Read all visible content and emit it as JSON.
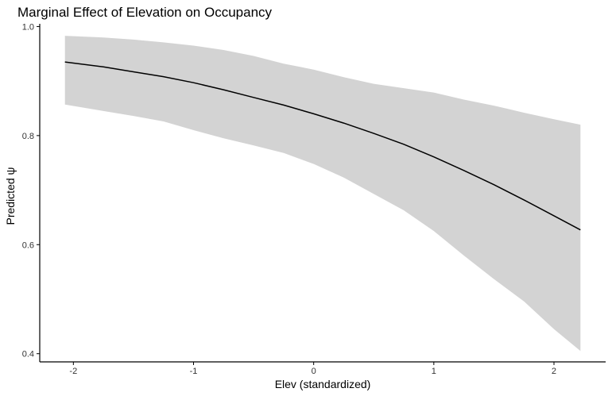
{
  "chart_data": {
    "type": "line",
    "title": "Marginal Effect of Elevation on Occupancy",
    "xlabel": "Elev (standardized)",
    "ylabel": "Predicted ψ",
    "xlim": [
      -2.28,
      2.43
    ],
    "ylim": [
      0.385,
      1.005
    ],
    "x_ticks": [
      -2,
      -1,
      0,
      1,
      2
    ],
    "x_tick_labels": [
      "-2",
      "-1",
      "0",
      "1",
      "2"
    ],
    "y_ticks": [
      0.4,
      0.6,
      0.8,
      1.0
    ],
    "y_tick_labels": [
      "0.4",
      "0.6",
      "0.8",
      "1.0"
    ],
    "grid": false,
    "series": [
      {
        "x": [
          -2.07,
          -1.75,
          -1.5,
          -1.25,
          -1.0,
          -0.75,
          -0.5,
          -0.25,
          0.0,
          0.25,
          0.5,
          0.75,
          1.0,
          1.25,
          1.5,
          1.75,
          2.0,
          2.22
        ],
        "fit": [
          0.935,
          0.926,
          0.917,
          0.908,
          0.897,
          0.884,
          0.87,
          0.856,
          0.84,
          0.823,
          0.804,
          0.784,
          0.761,
          0.736,
          0.71,
          0.682,
          0.653,
          0.627
        ],
        "lower": [
          0.857,
          0.845,
          0.836,
          0.826,
          0.81,
          0.795,
          0.782,
          0.768,
          0.748,
          0.723,
          0.693,
          0.663,
          0.625,
          0.58,
          0.537,
          0.496,
          0.445,
          0.405
        ],
        "upper": [
          0.983,
          0.98,
          0.976,
          0.971,
          0.965,
          0.957,
          0.946,
          0.932,
          0.921,
          0.907,
          0.895,
          0.887,
          0.879,
          0.866,
          0.855,
          0.842,
          0.83,
          0.82
        ]
      }
    ],
    "colors": {
      "line": "#000000",
      "ribbon": "#d3d3d3",
      "axis": "#000000",
      "tick_text": "#333333"
    }
  }
}
